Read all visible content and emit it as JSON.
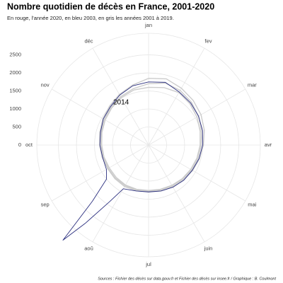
{
  "chart_data": {
    "type": "polar-line",
    "title": "Nombre quotidien de décès en France, 2001-2020",
    "subtitle": "En rouge, l'année 2020, en bleu 2003, en gris les années 2001 à 2019.",
    "caption": "Sources : Fichier des décès sur data.gouv.fr et Fichier des décès sur insee.fr / Graphique : B. Coulmont",
    "annotation": "2014",
    "xlim": [
      0,
      12
    ],
    "xticks": [
      {
        "value": 0,
        "label": "jan"
      },
      {
        "value": 1,
        "label": "fev"
      },
      {
        "value": 2,
        "label": "mar"
      },
      {
        "value": 3,
        "label": "avr"
      },
      {
        "value": 4,
        "label": "mai"
      },
      {
        "value": 5,
        "label": "juin"
      },
      {
        "value": 6,
        "label": "jul"
      },
      {
        "value": 7,
        "label": "aoû"
      },
      {
        "value": 8,
        "label": "sep"
      },
      {
        "value": 9,
        "label": "oct"
      },
      {
        "value": 10,
        "label": "nov"
      },
      {
        "value": 11,
        "label": "déc"
      }
    ],
    "ylim": [
      0,
      3100
    ],
    "yticks": [
      0,
      500,
      1000,
      1500,
      2000,
      2500
    ],
    "grid": true,
    "series": [
      {
        "color": "#cccccc",
        "x": [
          0,
          0.5,
          1,
          1.5,
          2,
          2.5,
          3,
          3.5,
          4,
          4.5,
          5,
          5.5,
          6,
          6.5,
          7,
          7.5,
          8,
          8.5,
          9,
          9.5,
          10,
          10.5,
          11,
          11.5,
          12
        ],
        "values": [
          1700,
          1780,
          1750,
          1680,
          1600,
          1520,
          1460,
          1420,
          1380,
          1340,
          1310,
          1290,
          1280,
          1290,
          1300,
          1300,
          1290,
          1300,
          1320,
          1360,
          1420,
          1480,
          1550,
          1620,
          1700
        ]
      },
      {
        "color": "#cccccc",
        "x": [
          0,
          0.5,
          1,
          1.5,
          2,
          2.5,
          3,
          3.5,
          4,
          4.5,
          5,
          5.5,
          6,
          6.5,
          7,
          7.5,
          8,
          8.5,
          9,
          9.5,
          10,
          10.5,
          11,
          11.5,
          12
        ],
        "values": [
          1600,
          1650,
          1680,
          1620,
          1550,
          1480,
          1430,
          1390,
          1350,
          1320,
          1290,
          1270,
          1260,
          1270,
          1280,
          1270,
          1260,
          1280,
          1300,
          1340,
          1390,
          1450,
          1520,
          1580,
          1600
        ]
      },
      {
        "color": "#cccccc",
        "x": [
          0,
          0.5,
          1,
          1.5,
          2,
          2.5,
          3,
          3.5,
          4,
          4.5,
          5,
          5.5,
          6,
          6.5,
          7,
          7.5,
          8,
          8.5,
          9,
          9.5,
          10,
          10.5,
          11,
          11.5,
          12
        ],
        "values": [
          1850,
          1900,
          1820,
          1750,
          1680,
          1600,
          1520,
          1460,
          1410,
          1370,
          1340,
          1320,
          1300,
          1310,
          1330,
          1320,
          1310,
          1330,
          1360,
          1400,
          1460,
          1530,
          1620,
          1720,
          1850
        ]
      },
      {
        "color": "#2b2f7f",
        "x": [
          0,
          0.5,
          1,
          1.5,
          2,
          2.5,
          3,
          3.5,
          4,
          4.5,
          5,
          5.5,
          6,
          6.5,
          7,
          7.15,
          7.3,
          7.4,
          7.5,
          7.7,
          8,
          8.5,
          9,
          9.5,
          10,
          10.5,
          11,
          11.5,
          12
        ],
        "values": [
          1750,
          1800,
          1700,
          1650,
          1600,
          1550,
          1500,
          1450,
          1400,
          1380,
          1350,
          1320,
          1300,
          1320,
          1400,
          1900,
          2800,
          3550,
          2200,
          1500,
          1350,
          1320,
          1350,
          1380,
          1450,
          1500,
          1600,
          1700,
          1750
        ]
      }
    ]
  }
}
